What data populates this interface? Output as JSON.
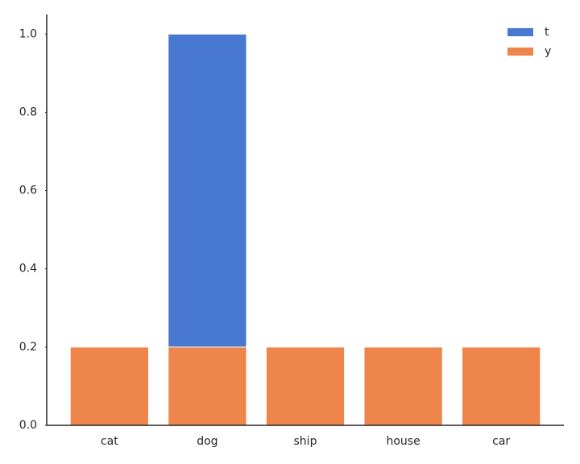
{
  "chart_data": {
    "type": "bar",
    "categories": [
      "cat",
      "dog",
      "ship",
      "house",
      "car"
    ],
    "series": [
      {
        "name": "t",
        "color": "#4878cf",
        "values": [
          0,
          1,
          0,
          0,
          0
        ]
      },
      {
        "name": "y",
        "color": "#ee854a",
        "values": [
          0.2,
          0.2,
          0.2,
          0.2,
          0.2
        ]
      }
    ],
    "ylim": [
      0,
      1.05
    ],
    "yticks": [
      {
        "value": 0,
        "label": "0.0"
      },
      {
        "value": 0.2,
        "label": "0.2"
      },
      {
        "value": 0.4,
        "label": "0.4"
      },
      {
        "value": 0.6,
        "label": "0.6"
      },
      {
        "value": 0.8,
        "label": "0.8"
      },
      {
        "value": 1,
        "label": "1.0"
      }
    ],
    "grid": false,
    "legend": "upper-right"
  }
}
